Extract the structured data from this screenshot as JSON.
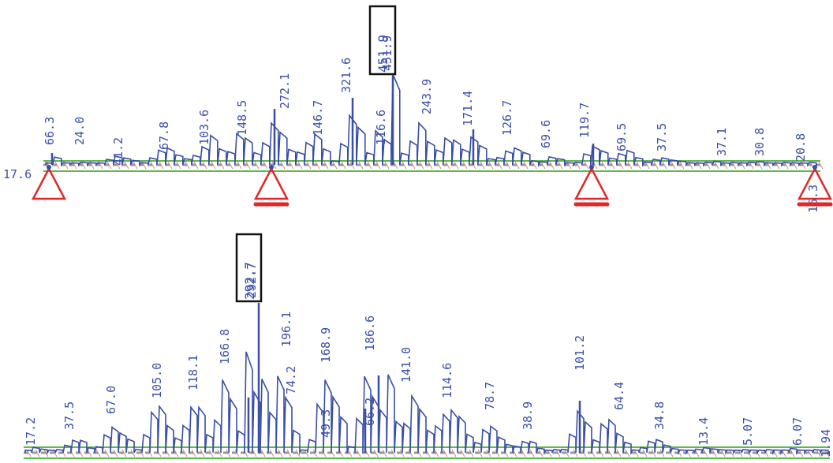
{
  "colors": {
    "diagram_line": "#3a4ea6",
    "label_text": "#3b4fa8",
    "beam_green": "#5fb84a",
    "beam_grey": "#9a9a9a",
    "support_red": "#e02828",
    "highlight_box": "#111111"
  },
  "diagram_top": {
    "left_end_label": "17.6",
    "max_label": "451.9",
    "labels": [
      "66.3",
      "24.0",
      "41.2",
      "67.8",
      "103.6",
      "148.5",
      "272.1",
      "146.7",
      "321.6",
      "116.6",
      "451.9",
      "243.9",
      "171.4",
      "126.7",
      "69.6",
      "119.7",
      "69.5",
      "37.5",
      "37.1",
      "30.8",
      "20.8",
      "16.3"
    ],
    "supports": [
      "pin",
      "pin",
      "pin",
      "pin"
    ]
  },
  "diagram_bottom": {
    "max_label": "292.7",
    "labels": [
      "17.2",
      "37.5",
      "67.0",
      "105.0",
      "118.1",
      "166.8",
      "292.7",
      "196.1",
      "74.2",
      "168.9",
      "49.3",
      "186.6",
      "66.2",
      "141.0",
      "114.6",
      "78.7",
      "38.9",
      "101.2",
      "64.4",
      "34.8",
      "13.4",
      "5.07",
      "6.07",
      "1.94"
    ]
  }
}
